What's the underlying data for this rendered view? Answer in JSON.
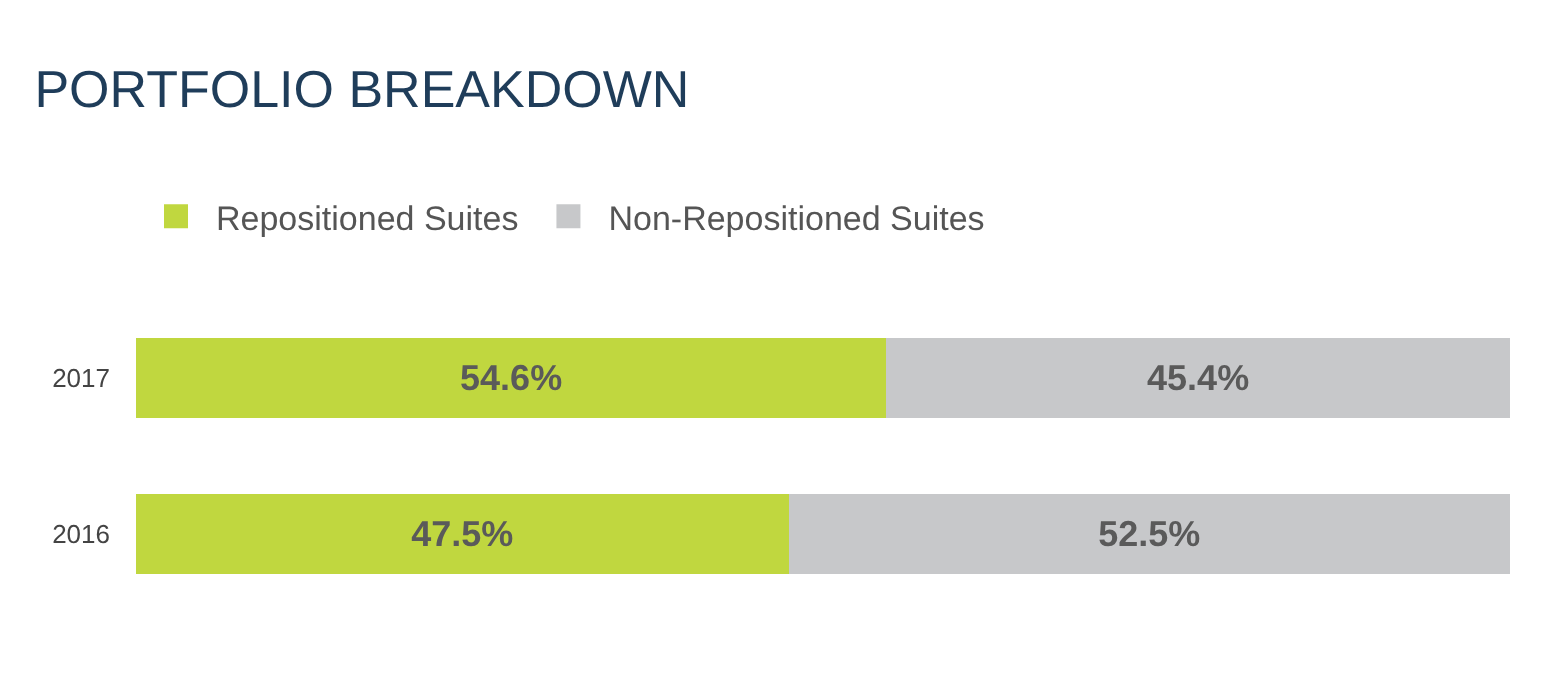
{
  "chart_data": {
    "type": "bar",
    "title": "PORTFOLIO BREAKDOWN",
    "orientation": "horizontal",
    "stacked": true,
    "categories": [
      "2017",
      "2016"
    ],
    "series": [
      {
        "name": "Repositioned Suites",
        "color": "#c0d73f",
        "values": [
          54.6,
          47.5
        ],
        "value_labels": [
          "54.6%",
          "47.5%"
        ]
      },
      {
        "name": "Non-Repositioned Suites",
        "color": "#c7c8ca",
        "values": [
          45.4,
          52.5
        ],
        "value_labels": [
          "45.4%",
          "52.5%"
        ]
      }
    ],
    "xlim": [
      0,
      100
    ],
    "tick_labels": "y",
    "legend": "top left"
  }
}
